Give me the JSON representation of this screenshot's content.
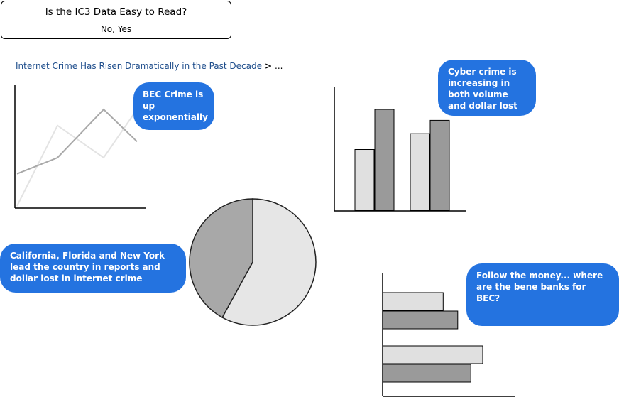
{
  "header": {
    "question": "Is the IC3 Data Easy to Read?",
    "answer": "No, Yes"
  },
  "breadcrumb": {
    "link": "Internet Crime Has Risen Dramatically in the Past Decade",
    "separator": ">",
    "ellipsis": "..."
  },
  "callouts": {
    "bec": "BEC Crime is up exponentially",
    "cyber": "Cyber crime is increasing in both volume and dollar lost",
    "states": "California, Florida and New York lead the country in reports and dollar lost in internet crime",
    "money": "Follow the money... where are the bene banks for BEC?"
  },
  "colors": {
    "bubble": "#2473e0",
    "light_fill": "#e0e0e0",
    "dark_fill": "#9a9a9a",
    "pie_light": "#e6e6e6",
    "pie_dark": "#a8a8a8"
  },
  "chart_data": [
    {
      "type": "line",
      "series": [
        {
          "values": [
            0,
            5,
            3,
            6
          ]
        },
        {
          "values": [
            2,
            3,
            6,
            4
          ]
        }
      ]
    },
    {
      "type": "bar",
      "categories": [
        "",
        ""
      ],
      "series": [
        {
          "values": [
            5,
            6.3
          ]
        },
        {
          "values": [
            8.3,
            7.4
          ]
        }
      ]
    },
    {
      "type": "pie",
      "values": [
        58,
        42
      ]
    },
    {
      "type": "bar",
      "orientation": "horizontal",
      "categories": [
        "",
        ""
      ],
      "series": [
        {
          "values": [
            4.6,
            7.6
          ]
        },
        {
          "values": [
            5.7,
            6.7
          ]
        }
      ]
    }
  ]
}
